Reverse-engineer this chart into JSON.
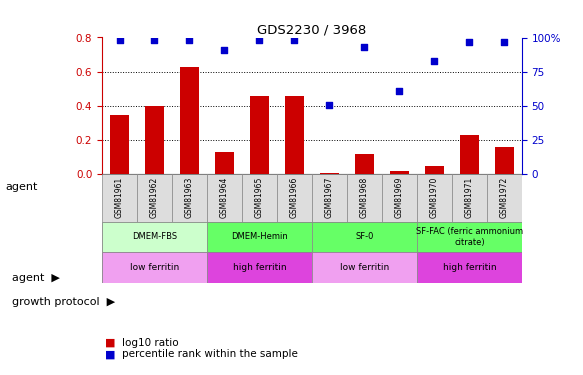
{
  "title": "GDS2230 / 3968",
  "samples": [
    "GSM81961",
    "GSM81962",
    "GSM81963",
    "GSM81964",
    "GSM81965",
    "GSM81966",
    "GSM81967",
    "GSM81968",
    "GSM81969",
    "GSM81970",
    "GSM81971",
    "GSM81972"
  ],
  "log10_ratio": [
    0.35,
    0.4,
    0.63,
    0.13,
    0.46,
    0.46,
    0.01,
    0.12,
    0.02,
    0.05,
    0.23,
    0.16
  ],
  "percentile_rank": [
    98,
    98,
    98,
    91,
    98,
    98,
    51,
    93,
    61,
    83,
    97,
    97
  ],
  "bar_color": "#cc0000",
  "dot_color": "#0000cc",
  "ylim_left": [
    0,
    0.8
  ],
  "ylim_right": [
    0,
    100
  ],
  "yticks_left": [
    0,
    0.2,
    0.4,
    0.6,
    0.8
  ],
  "yticks_right": [
    0,
    25,
    50,
    75,
    100
  ],
  "ytick_labels_right": [
    "0",
    "25",
    "50",
    "75",
    "100%"
  ],
  "grid_values": [
    0.2,
    0.4,
    0.6,
    0.8
  ],
  "agent_groups": [
    {
      "label": "DMEM-FBS",
      "start": 0,
      "end": 3,
      "color": "#ccffcc"
    },
    {
      "label": "DMEM-Hemin",
      "start": 3,
      "end": 6,
      "color": "#66ff66"
    },
    {
      "label": "SF-0",
      "start": 6,
      "end": 9,
      "color": "#66ff66"
    },
    {
      "label": "SF-FAC (ferric ammonium\ncitrate)",
      "start": 9,
      "end": 12,
      "color": "#66ff66"
    }
  ],
  "growth_groups": [
    {
      "label": "low ferritin",
      "start": 0,
      "end": 3,
      "color": "#f0a0f0"
    },
    {
      "label": "high ferritin",
      "start": 3,
      "end": 6,
      "color": "#dd44dd"
    },
    {
      "label": "low ferritin",
      "start": 6,
      "end": 9,
      "color": "#f0a0f0"
    },
    {
      "label": "high ferritin",
      "start": 9,
      "end": 12,
      "color": "#dd44dd"
    }
  ],
  "left_axis_color": "#cc0000",
  "right_axis_color": "#0000cc",
  "agent_label": "agent",
  "growth_label": "growth protocol",
  "legend_bar_label": "log10 ratio",
  "legend_dot_label": "percentile rank within the sample"
}
